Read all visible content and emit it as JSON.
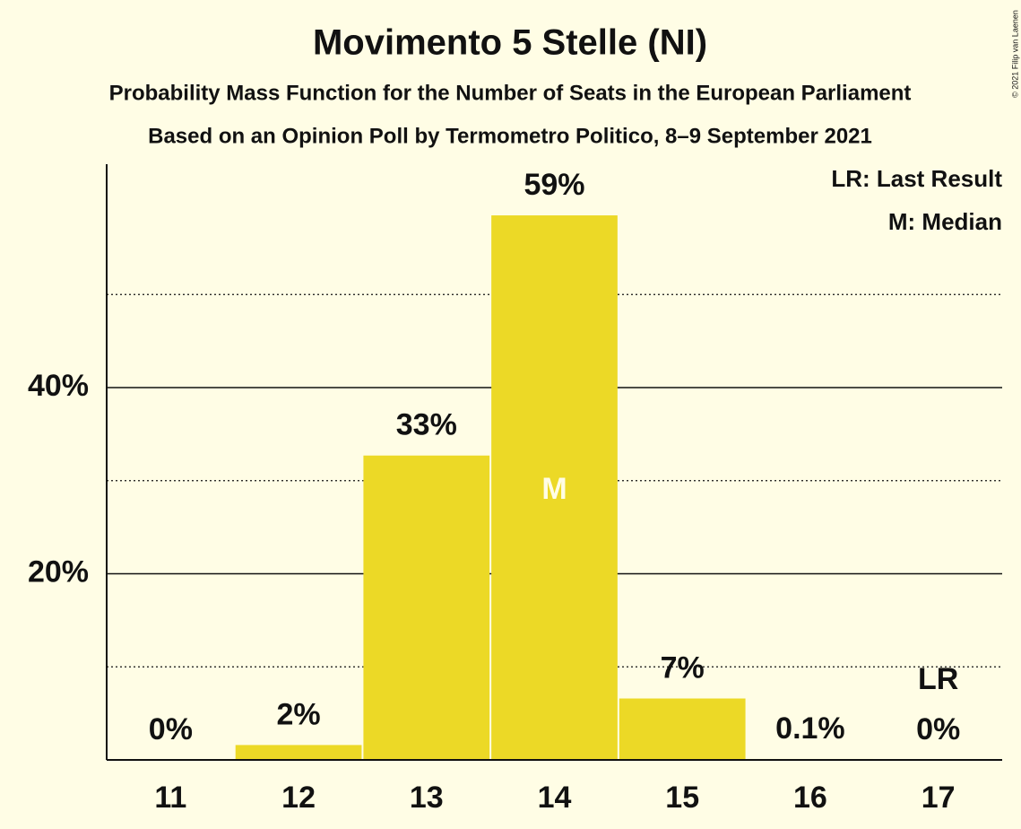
{
  "chart_data": {
    "type": "bar",
    "title": "Movimento 5 Stelle (NI)",
    "subtitles": [
      "Probability Mass Function for the Number of Seats in the European Parliament",
      "Based on an Opinion Poll by Termometro Politico, 8–9 September 2021"
    ],
    "credit": "© 2021 Filip van Laenen",
    "categories": [
      "11",
      "12",
      "13",
      "14",
      "15",
      "16",
      "17"
    ],
    "values": [
      0,
      1.6,
      32.7,
      58.5,
      6.6,
      0.1,
      0
    ],
    "value_labels": [
      "0%",
      "2%",
      "33%",
      "59%",
      "7%",
      "0.1%",
      "0%"
    ],
    "color": "#ecd926",
    "ylim": [
      0,
      64
    ],
    "yticks": [
      {
        "value": 20,
        "label": "20%"
      },
      {
        "value": 40,
        "label": "40%"
      }
    ],
    "minor_yticks": [
      10,
      30,
      50
    ],
    "grid": true,
    "median": {
      "label": "M",
      "category": "14"
    },
    "last_result": {
      "label": "LR",
      "category": "17"
    },
    "legend": [
      "LR: Last Result",
      "M: Median"
    ],
    "legend_position": "top-right"
  }
}
